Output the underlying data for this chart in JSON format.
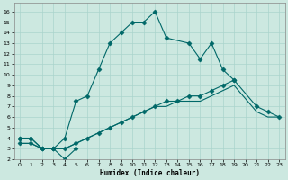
{
  "xlabel": "Humidex (Indice chaleur)",
  "xlim": [
    -0.5,
    23.5
  ],
  "ylim": [
    2,
    16.8
  ],
  "xticks": [
    0,
    1,
    2,
    3,
    4,
    5,
    6,
    7,
    8,
    9,
    10,
    11,
    12,
    13,
    14,
    15,
    16,
    17,
    18,
    19,
    20,
    21,
    22,
    23
  ],
  "yticks": [
    2,
    3,
    4,
    5,
    6,
    7,
    8,
    9,
    10,
    11,
    12,
    13,
    14,
    15,
    16
  ],
  "bg_color": "#cce8e0",
  "line_color": "#006868",
  "grid_color": "#aad4cc",
  "lines": [
    {
      "x": [
        0,
        1,
        2,
        3,
        4,
        5,
        6,
        7,
        8,
        9,
        10,
        11,
        12,
        13,
        15,
        16,
        17,
        18,
        19
      ],
      "y": [
        4,
        4,
        3,
        3,
        4,
        7.5,
        8,
        10.5,
        13,
        14,
        15,
        15,
        16,
        13.5,
        13,
        11.5,
        13,
        10.5,
        9.5
      ],
      "style": "-",
      "marker": "D",
      "markersize": 2.5
    },
    {
      "x": [
        0,
        1,
        2,
        3,
        4,
        5
      ],
      "y": [
        4,
        4,
        3,
        3,
        2,
        3
      ],
      "style": "-",
      "marker": "D",
      "markersize": 2.5
    },
    {
      "x": [
        0,
        1,
        2,
        3,
        4,
        5,
        6,
        7,
        8,
        9,
        10,
        11,
        12,
        13,
        14,
        15,
        16,
        17,
        18,
        19,
        21,
        22,
        23
      ],
      "y": [
        3.5,
        3.5,
        3,
        3,
        3,
        3.5,
        4,
        4.5,
        5,
        5.5,
        6,
        6.5,
        7,
        7.5,
        7.5,
        8,
        8,
        8.5,
        9,
        9.5,
        7,
        6.5,
        6
      ],
      "style": "-",
      "marker": "D",
      "markersize": 2.5
    },
    {
      "x": [
        0,
        1,
        2,
        3,
        4,
        5,
        6,
        7,
        8,
        9,
        10,
        11,
        12,
        13,
        14,
        15,
        16,
        17,
        18,
        19,
        21,
        22,
        23
      ],
      "y": [
        3.5,
        3.5,
        3,
        3,
        3,
        3.5,
        4,
        4.5,
        5,
        5.5,
        6,
        6.5,
        7,
        7,
        7.5,
        7.5,
        7.5,
        8,
        8.5,
        9,
        6.5,
        6,
        6
      ],
      "style": "-",
      "marker": null,
      "markersize": 2.5
    }
  ]
}
